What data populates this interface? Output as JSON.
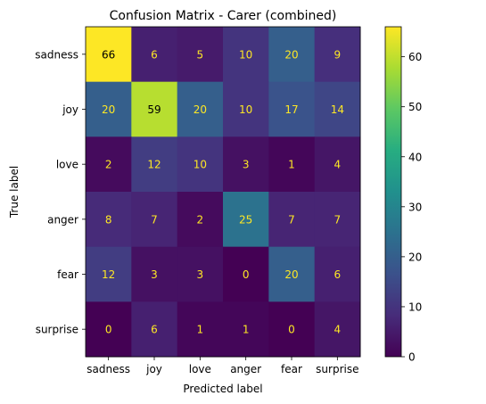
{
  "chart_data": {
    "type": "heatmap",
    "title": "Confusion Matrix - Carer (combined)",
    "xlabel": "Predicted label",
    "ylabel": "True label",
    "x_categories": [
      "sadness",
      "joy",
      "love",
      "anger",
      "fear",
      "surprise"
    ],
    "y_categories": [
      "sadness",
      "joy",
      "love",
      "anger",
      "fear",
      "surprise"
    ],
    "values": [
      [
        66,
        6,
        5,
        10,
        20,
        9
      ],
      [
        20,
        59,
        20,
        10,
        17,
        14
      ],
      [
        2,
        12,
        10,
        3,
        1,
        4
      ],
      [
        8,
        7,
        2,
        25,
        7,
        7
      ],
      [
        12,
        3,
        3,
        0,
        20,
        6
      ],
      [
        0,
        6,
        1,
        1,
        0,
        4
      ]
    ],
    "colormap": "viridis",
    "vmin": 0,
    "vmax": 66,
    "colorbar_ticks": [
      0,
      10,
      20,
      30,
      40,
      50,
      60
    ],
    "text_color_dark": "#000000",
    "text_color_light": "#fde725"
  }
}
